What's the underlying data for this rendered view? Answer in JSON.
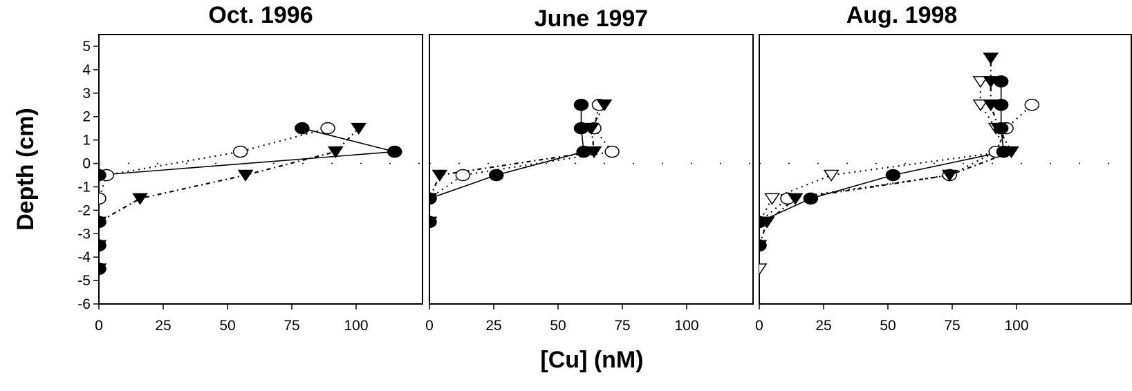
{
  "chart_data": {
    "type": "scatter",
    "xlabel": "[Cu] (nM)",
    "ylabel": "Depth (cm)",
    "ylim": [
      -6,
      5.5
    ],
    "yticks": [
      "5",
      "4",
      "3",
      "2",
      "1",
      "0",
      "-1",
      "-2",
      "-3",
      "-4",
      "-5",
      "-6"
    ],
    "xticks": [
      "0",
      "25",
      "50",
      "75",
      "100"
    ],
    "grid": false,
    "reference_line_y": 0,
    "panels": [
      {
        "title": "Oct. 1996",
        "xlim": [
          0,
          125
        ],
        "series": [
          {
            "marker": "filled-circle",
            "line": "solid",
            "points": [
              [
                0,
                -4.5
              ],
              [
                0,
                -3.5
              ],
              [
                0,
                -2.5
              ],
              [
                0,
                -0.5
              ],
              [
                115,
                0.5
              ],
              [
                79,
                1.5
              ]
            ]
          },
          {
            "marker": "open-circle",
            "line": "dotted",
            "points": [
              [
                0,
                -4.5
              ],
              [
                0,
                -3.5
              ],
              [
                0,
                -2.5
              ],
              [
                0,
                -1.5
              ],
              [
                3,
                -0.5
              ],
              [
                55,
                0.5
              ],
              [
                89,
                1.5
              ]
            ]
          },
          {
            "marker": "filled-triangle",
            "line": "dash-dot",
            "points": [
              [
                0,
                -4.5
              ],
              [
                0,
                -3.5
              ],
              [
                0,
                -2.5
              ],
              [
                16,
                -1.5
              ],
              [
                57,
                -0.5
              ],
              [
                92,
                0.5
              ],
              [
                101,
                1.5
              ]
            ]
          }
        ]
      },
      {
        "title": "June 1997",
        "xlim": [
          0,
          125
        ],
        "series": [
          {
            "marker": "filled-circle",
            "line": "solid",
            "points": [
              [
                0,
                -2.5
              ],
              [
                0,
                -1.5
              ],
              [
                26,
                -0.5
              ],
              [
                60,
                0.5
              ],
              [
                59,
                1.5
              ],
              [
                59,
                2.5
              ]
            ]
          },
          {
            "marker": "open-circle",
            "line": "dotted",
            "points": [
              [
                0,
                -2.5
              ],
              [
                0,
                -1.5
              ],
              [
                13,
                -0.5
              ],
              [
                71,
                0.5
              ],
              [
                64,
                1.5
              ],
              [
                66,
                2.5
              ]
            ]
          },
          {
            "marker": "filled-triangle",
            "line": "dash-dot",
            "points": [
              [
                0,
                -2.5
              ],
              [
                0,
                -1.5
              ],
              [
                4,
                -0.5
              ],
              [
                64,
                0.5
              ],
              [
                63,
                1.5
              ],
              [
                68,
                2.5
              ]
            ]
          }
        ]
      },
      {
        "title": "Aug. 1998",
        "xlim": [
          0,
          125
        ],
        "series": [
          {
            "marker": "filled-circle",
            "line": "solid",
            "points": [
              [
                0,
                -3.5
              ],
              [
                0,
                -2.5
              ],
              [
                20,
                -1.5
              ],
              [
                52,
                -0.5
              ],
              [
                95,
                0.5
              ],
              [
                94,
                1.5
              ],
              [
                94,
                2.5
              ],
              [
                94,
                3.5
              ]
            ]
          },
          {
            "marker": "open-circle",
            "line": "dotted",
            "points": [
              [
                0,
                -3.5
              ],
              [
                0,
                -2.5
              ],
              [
                11,
                -1.5
              ],
              [
                74,
                -0.5
              ],
              [
                92,
                0.5
              ],
              [
                96,
                1.5
              ],
              [
                106,
                2.5
              ]
            ]
          },
          {
            "marker": "filled-triangle",
            "line": "dash-dot",
            "points": [
              [
                0,
                -3.5
              ],
              [
                3,
                -2.5
              ],
              [
                14,
                -1.5
              ],
              [
                74,
                -0.5
              ],
              [
                98,
                0.5
              ],
              [
                93,
                1.5
              ],
              [
                90,
                2.5
              ],
              [
                90,
                3.5
              ],
              [
                90,
                4.5
              ]
            ]
          },
          {
            "marker": "open-triangle",
            "line": "dotted",
            "points": [
              [
                0,
                -4.5
              ],
              [
                0,
                -2.5
              ],
              [
                5,
                -1.5
              ],
              [
                28,
                -0.5
              ],
              [
                95,
                0.5
              ],
              [
                92,
                1.5
              ],
              [
                86,
                2.5
              ],
              [
                86,
                3.5
              ]
            ]
          }
        ]
      }
    ]
  }
}
